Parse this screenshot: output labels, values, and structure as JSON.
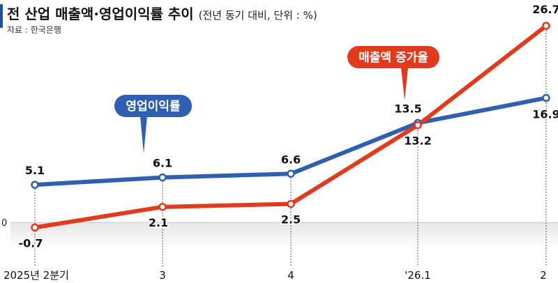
{
  "header": {
    "title": "전 산업 매출액·영업이익률 추이",
    "subtitle": "(전년 동기 대비, 단위 : %)",
    "source": "자료 : 한국은행"
  },
  "colors": {
    "operating_margin": "#2f5fb0",
    "sales_growth": "#e03b1f",
    "zero_band": "#e6e6e6"
  },
  "chart_data": {
    "type": "line",
    "categories": [
      "2025년 2분기",
      "3",
      "4",
      "'26.1",
      "2"
    ],
    "zero_label": "0",
    "series": [
      {
        "name": "영업이익률",
        "values": [
          5.1,
          6.1,
          6.6,
          13.5,
          16.9
        ],
        "labels": [
          "5.1",
          "6.1",
          "6.6",
          "13.5",
          "16.9"
        ]
      },
      {
        "name": "매출액 증가율",
        "values": [
          -0.7,
          2.1,
          2.5,
          13.2,
          26.7
        ],
        "labels": [
          "-0.7",
          "2.1",
          "2.5",
          "13.2",
          "26.7"
        ]
      }
    ],
    "legend": "callout labels on lines",
    "grid": false
  }
}
